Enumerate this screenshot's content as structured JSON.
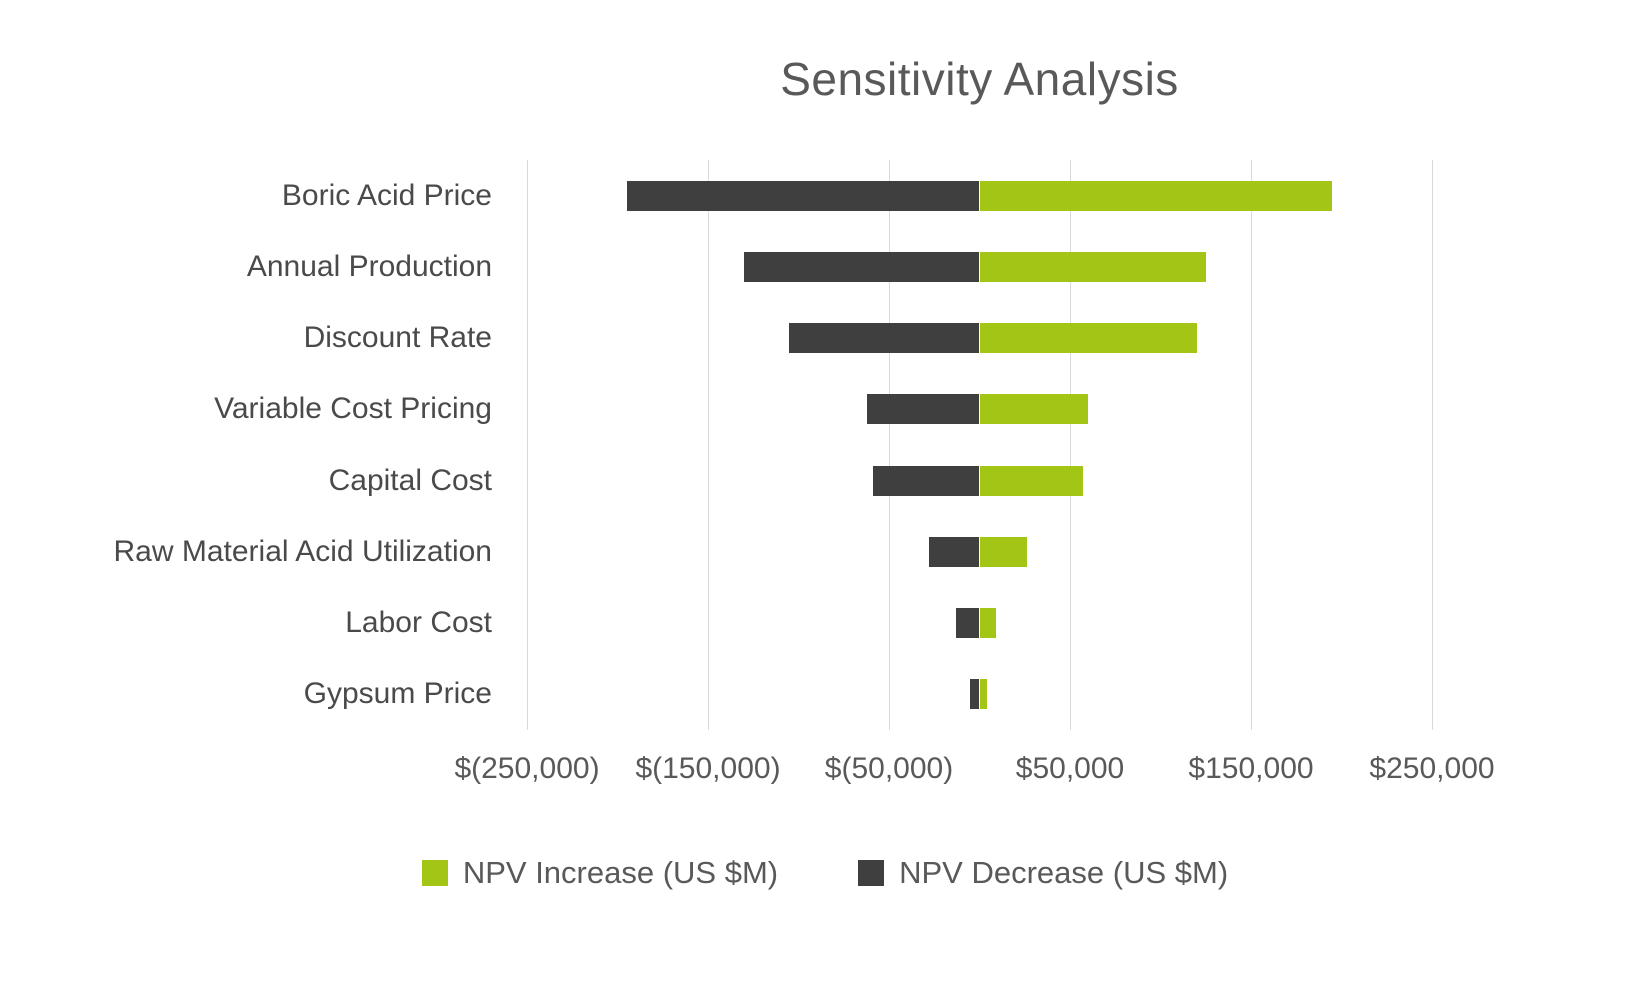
{
  "title": "Sensitivity Analysis",
  "colors": {
    "increase": "#a2c516",
    "decrease": "#3f3f3f",
    "gridline": "#d9d9d9",
    "title_text": "#595959",
    "axis_text": "#595959",
    "category_text": "#4a4a4a",
    "background": "#ffffff"
  },
  "chart_data": {
    "type": "bar",
    "subtype": "tornado",
    "orientation": "horizontal",
    "title": "Sensitivity Analysis",
    "xlabel": "",
    "ylabel": "",
    "grid": "vertical-only",
    "legend_position": "bottom",
    "categories": [
      "Boric Acid Price",
      "Annual Production",
      "Discount Rate",
      "Variable Cost Pricing",
      "Capital Cost",
      "Raw Material Acid Utilization",
      "Labor Cost",
      "Gypsum Price"
    ],
    "series": [
      {
        "name": "NPV Increase (US $M)",
        "color": "#a2c516",
        "values": [
          195000,
          125000,
          120000,
          60000,
          57000,
          26000,
          9000,
          4000
        ]
      },
      {
        "name": "NPV Decrease (US $M)",
        "color": "#3f3f3f",
        "values": [
          -195000,
          -130000,
          -105000,
          -62000,
          -59000,
          -28000,
          -13000,
          -5000
        ]
      }
    ],
    "xlim": [
      -250000,
      250000
    ],
    "x_ticks": [
      -250000,
      -150000,
      -50000,
      50000,
      150000,
      250000
    ],
    "x_tick_labels": [
      "$(250,000)",
      "$(150,000)",
      "$(50,000)",
      "$50,000",
      "$150,000",
      "$250,000"
    ]
  }
}
